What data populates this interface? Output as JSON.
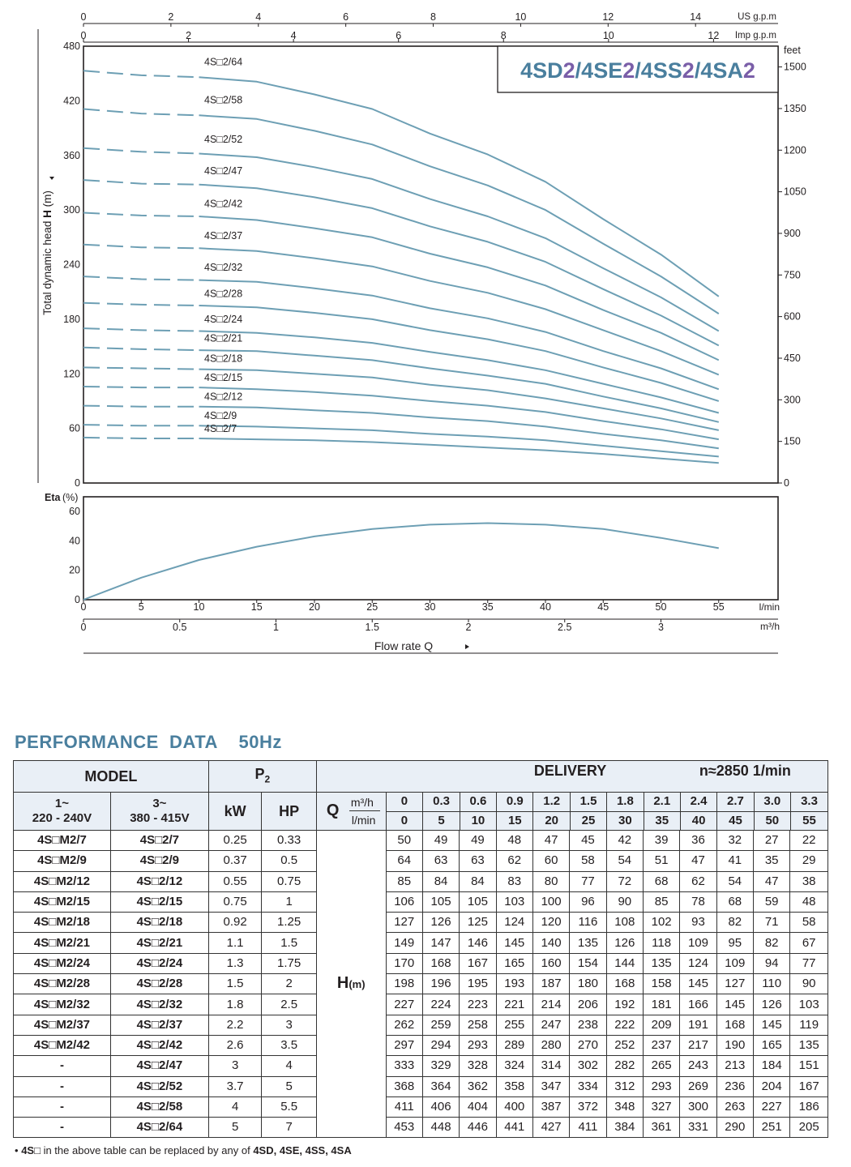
{
  "chart_data": {
    "type": "line",
    "title": "4SD2/4SE2/4SS2/4SA2",
    "title_parts": [
      {
        "text": "4SD",
        "role": "base"
      },
      {
        "text": "2",
        "role": "accent"
      },
      {
        "text": "/4SE",
        "role": "base"
      },
      {
        "text": "2",
        "role": "accent"
      },
      {
        "text": "/4SS",
        "role": "base"
      },
      {
        "text": "2",
        "role": "accent"
      },
      {
        "text": "/4SA",
        "role": "base"
      },
      {
        "text": "2",
        "role": "accent"
      }
    ],
    "colors": {
      "curve": "#6d9fb4",
      "title_base": "#4a7f9e",
      "title_accent": "#7a5ea8",
      "axis": "#231f20"
    },
    "xlabel": "Flow  rate  Q",
    "xlim": [
      0,
      60
    ],
    "ylim": [
      0,
      480
    ],
    "ylabel_prefix": "Total dynamic head ",
    "ylabel_bold": "H",
    "ylabel_suffix": " (m)",
    "x_ticks_lmin": [
      0,
      5,
      10,
      15,
      20,
      25,
      30,
      35,
      40,
      45,
      50,
      55
    ],
    "x_unit_lmin": "l/min",
    "x_ticks_m3h": [
      {
        "label": "0",
        "q": 0
      },
      {
        "label": "0.5",
        "q": 8.333
      },
      {
        "label": "1",
        "q": 16.667
      },
      {
        "label": "1.5",
        "q": 25
      },
      {
        "label": "2",
        "q": 33.333
      },
      {
        "label": "2.5",
        "q": 41.667
      },
      {
        "label": "3",
        "q": 50
      }
    ],
    "x_unit_m3h": "m³/h",
    "top_us_ticks": [
      {
        "label": "0",
        "q": 0
      },
      {
        "label": "2",
        "q": 7.571
      },
      {
        "label": "4",
        "q": 15.142
      },
      {
        "label": "6",
        "q": 22.712
      },
      {
        "label": "8",
        "q": 30.283
      },
      {
        "label": "10",
        "q": 37.854
      },
      {
        "label": "12",
        "q": 45.425
      },
      {
        "label": "14",
        "q": 52.996
      }
    ],
    "top_us_unit": "US g.p.m",
    "top_imp_ticks": [
      {
        "label": "0",
        "q": 0
      },
      {
        "label": "2",
        "q": 9.092
      },
      {
        "label": "4",
        "q": 18.184
      },
      {
        "label": "6",
        "q": 27.276
      },
      {
        "label": "8",
        "q": 36.368
      },
      {
        "label": "10",
        "q": 45.461
      },
      {
        "label": "12",
        "q": 54.553
      }
    ],
    "top_imp_unit": "Imp g.p.m",
    "y_ticks_m": [
      0,
      60,
      120,
      180,
      240,
      300,
      360,
      420,
      480
    ],
    "y_ticks_feet": [
      {
        "label": "0",
        "m": 0
      },
      {
        "label": "150",
        "m": 45.72
      },
      {
        "label": "300",
        "m": 91.44
      },
      {
        "label": "450",
        "m": 137.16
      },
      {
        "label": "600",
        "m": 182.88
      },
      {
        "label": "750",
        "m": 228.6
      },
      {
        "label": "900",
        "m": 274.32
      },
      {
        "label": "1050",
        "m": 320.04
      },
      {
        "label": "1200",
        "m": 365.76
      },
      {
        "label": "1350",
        "m": 411.48
      },
      {
        "label": "1500",
        "m": 457.2
      }
    ],
    "feet_unit": "feet",
    "q_points": [
      0,
      5,
      10,
      15,
      20,
      25,
      30,
      35,
      40,
      45,
      50,
      55
    ],
    "dash_until_q": 10,
    "series": [
      {
        "name": "4S□2/7",
        "label_h": 50,
        "values": [
          50,
          49,
          49,
          48,
          47,
          45,
          42,
          39,
          36,
          32,
          27,
          22
        ]
      },
      {
        "name": "4S□2/9",
        "label_h": 64,
        "values": [
          64,
          63,
          63,
          62,
          60,
          58,
          54,
          51,
          47,
          41,
          35,
          29
        ]
      },
      {
        "name": "4S□2/12",
        "label_h": 85,
        "values": [
          85,
          84,
          84,
          83,
          80,
          77,
          72,
          68,
          62,
          54,
          47,
          38
        ]
      },
      {
        "name": "4S□2/15",
        "label_h": 106,
        "values": [
          106,
          105,
          105,
          103,
          100,
          96,
          90,
          85,
          78,
          68,
          59,
          48
        ]
      },
      {
        "name": "4S□2/18",
        "label_h": 127,
        "values": [
          127,
          126,
          125,
          124,
          120,
          116,
          108,
          102,
          93,
          82,
          71,
          58
        ]
      },
      {
        "name": "4S□2/21",
        "label_h": 149,
        "values": [
          149,
          147,
          146,
          145,
          140,
          135,
          126,
          118,
          109,
          95,
          82,
          67
        ]
      },
      {
        "name": "4S□2/24",
        "label_h": 170,
        "values": [
          170,
          168,
          167,
          165,
          160,
          154,
          144,
          135,
          124,
          109,
          94,
          77
        ]
      },
      {
        "name": "4S□2/28",
        "label_h": 198,
        "values": [
          198,
          196,
          195,
          193,
          187,
          180,
          168,
          158,
          145,
          127,
          110,
          90
        ]
      },
      {
        "name": "4S□2/32",
        "label_h": 227,
        "values": [
          227,
          224,
          223,
          221,
          214,
          206,
          192,
          181,
          166,
          145,
          126,
          103
        ]
      },
      {
        "name": "4S□2/37",
        "label_h": 262,
        "values": [
          262,
          259,
          258,
          255,
          247,
          238,
          222,
          209,
          191,
          168,
          145,
          119
        ]
      },
      {
        "name": "4S□2/42",
        "label_h": 297,
        "values": [
          297,
          294,
          293,
          289,
          280,
          270,
          252,
          237,
          217,
          190,
          165,
          135
        ]
      },
      {
        "name": "4S□2/47",
        "label_h": 333,
        "values": [
          333,
          329,
          328,
          324,
          314,
          302,
          282,
          265,
          243,
          213,
          184,
          151
        ]
      },
      {
        "name": "4S□2/52",
        "label_h": 368,
        "values": [
          368,
          364,
          362,
          358,
          347,
          334,
          312,
          293,
          269,
          236,
          204,
          167
        ]
      },
      {
        "name": "4S□2/58",
        "label_h": 411,
        "values": [
          411,
          406,
          404,
          400,
          387,
          372,
          348,
          327,
          300,
          263,
          227,
          186
        ]
      },
      {
        "name": "4S□2/64",
        "label_h": 453,
        "values": [
          453,
          448,
          446,
          441,
          427,
          411,
          384,
          361,
          331,
          290,
          251,
          205
        ]
      }
    ],
    "eta": {
      "label": "Eta",
      "unit": "(%)",
      "ylim": [
        0,
        60
      ],
      "y_ticks": [
        0,
        20,
        40,
        60
      ],
      "q": [
        0,
        5,
        10,
        15,
        20,
        25,
        30,
        35,
        40,
        45,
        50,
        55
      ],
      "values": [
        0,
        15,
        27,
        36,
        43,
        48,
        51,
        52,
        51,
        48,
        42,
        35
      ]
    }
  },
  "performance": {
    "title": "PERFORMANCE  DATA",
    "freq": "50Hz",
    "model_header": "MODEL",
    "p2_header": "P",
    "p2_sub": "2",
    "delivery_header": "DELIVERY",
    "speed": "n≈2850 1/min",
    "phase1_line1": "1~",
    "phase1_line2": "220 - 240V",
    "phase3_line1": "3~",
    "phase3_line2": "380 - 415V",
    "kw_header": "kW",
    "hp_header": "HP",
    "q_label": "Q",
    "unit_m3h": "m³/h",
    "unit_lmin": "l/min",
    "h_label": "H",
    "h_unit": "(m)",
    "q_m3h": [
      "0",
      "0.3",
      "0.6",
      "0.9",
      "1.2",
      "1.5",
      "1.8",
      "2.1",
      "2.4",
      "2.7",
      "3.0",
      "3.3"
    ],
    "q_lmin": [
      "0",
      "5",
      "10",
      "15",
      "20",
      "25",
      "30",
      "35",
      "40",
      "45",
      "50",
      "55"
    ],
    "rows": [
      {
        "m1": "4S□M2/7",
        "m3": "4S□2/7",
        "kw": "0.25",
        "hp": "0.33",
        "h": [
          "50",
          "49",
          "49",
          "48",
          "47",
          "45",
          "42",
          "39",
          "36",
          "32",
          "27",
          "22"
        ]
      },
      {
        "m1": "4S□M2/9",
        "m3": "4S□2/9",
        "kw": "0.37",
        "hp": "0.5",
        "h": [
          "64",
          "63",
          "63",
          "62",
          "60",
          "58",
          "54",
          "51",
          "47",
          "41",
          "35",
          "29"
        ]
      },
      {
        "m1": "4S□M2/12",
        "m3": "4S□2/12",
        "kw": "0.55",
        "hp": "0.75",
        "h": [
          "85",
          "84",
          "84",
          "83",
          "80",
          "77",
          "72",
          "68",
          "62",
          "54",
          "47",
          "38"
        ]
      },
      {
        "m1": "4S□M2/15",
        "m3": "4S□2/15",
        "kw": "0.75",
        "hp": "1",
        "h": [
          "106",
          "105",
          "105",
          "103",
          "100",
          "96",
          "90",
          "85",
          "78",
          "68",
          "59",
          "48"
        ]
      },
      {
        "m1": "4S□M2/18",
        "m3": "4S□2/18",
        "kw": "0.92",
        "hp": "1.25",
        "h": [
          "127",
          "126",
          "125",
          "124",
          "120",
          "116",
          "108",
          "102",
          "93",
          "82",
          "71",
          "58"
        ]
      },
      {
        "m1": "4S□M2/21",
        "m3": "4S□2/21",
        "kw": "1.1",
        "hp": "1.5",
        "h": [
          "149",
          "147",
          "146",
          "145",
          "140",
          "135",
          "126",
          "118",
          "109",
          "95",
          "82",
          "67"
        ]
      },
      {
        "m1": "4S□M2/24",
        "m3": "4S□2/24",
        "kw": "1.3",
        "hp": "1.75",
        "h": [
          "170",
          "168",
          "167",
          "165",
          "160",
          "154",
          "144",
          "135",
          "124",
          "109",
          "94",
          "77"
        ]
      },
      {
        "m1": "4S□M2/28",
        "m3": "4S□2/28",
        "kw": "1.5",
        "hp": "2",
        "h": [
          "198",
          "196",
          "195",
          "193",
          "187",
          "180",
          "168",
          "158",
          "145",
          "127",
          "110",
          "90"
        ]
      },
      {
        "m1": "4S□M2/32",
        "m3": "4S□2/32",
        "kw": "1.8",
        "hp": "2.5",
        "h": [
          "227",
          "224",
          "223",
          "221",
          "214",
          "206",
          "192",
          "181",
          "166",
          "145",
          "126",
          "103"
        ]
      },
      {
        "m1": "4S□M2/37",
        "m3": "4S□2/37",
        "kw": "2.2",
        "hp": "3",
        "h": [
          "262",
          "259",
          "258",
          "255",
          "247",
          "238",
          "222",
          "209",
          "191",
          "168",
          "145",
          "119"
        ]
      },
      {
        "m1": "4S□M2/42",
        "m3": "4S□2/42",
        "kw": "2.6",
        "hp": "3.5",
        "h": [
          "297",
          "294",
          "293",
          "289",
          "280",
          "270",
          "252",
          "237",
          "217",
          "190",
          "165",
          "135"
        ]
      },
      {
        "m1": "-",
        "m3": "4S□2/47",
        "kw": "3",
        "hp": "4",
        "h": [
          "333",
          "329",
          "328",
          "324",
          "314",
          "302",
          "282",
          "265",
          "243",
          "213",
          "184",
          "151"
        ]
      },
      {
        "m1": "-",
        "m3": "4S□2/52",
        "kw": "3.7",
        "hp": "5",
        "h": [
          "368",
          "364",
          "362",
          "358",
          "347",
          "334",
          "312",
          "293",
          "269",
          "236",
          "204",
          "167"
        ]
      },
      {
        "m1": "-",
        "m3": "4S□2/58",
        "kw": "4",
        "hp": "5.5",
        "h": [
          "411",
          "406",
          "404",
          "400",
          "387",
          "372",
          "348",
          "327",
          "300",
          "263",
          "227",
          "186"
        ]
      },
      {
        "m1": "-",
        "m3": "4S□2/64",
        "kw": "5",
        "hp": "7",
        "h": [
          "453",
          "448",
          "446",
          "441",
          "427",
          "411",
          "384",
          "361",
          "331",
          "290",
          "251",
          "205"
        ]
      }
    ],
    "footnote_bullet": "•",
    "footnote_1": "4S□",
    "footnote_2": " in the above table can be replaced by any of ",
    "footnote_3": "4SD, 4SE, 4SS, 4SA"
  }
}
